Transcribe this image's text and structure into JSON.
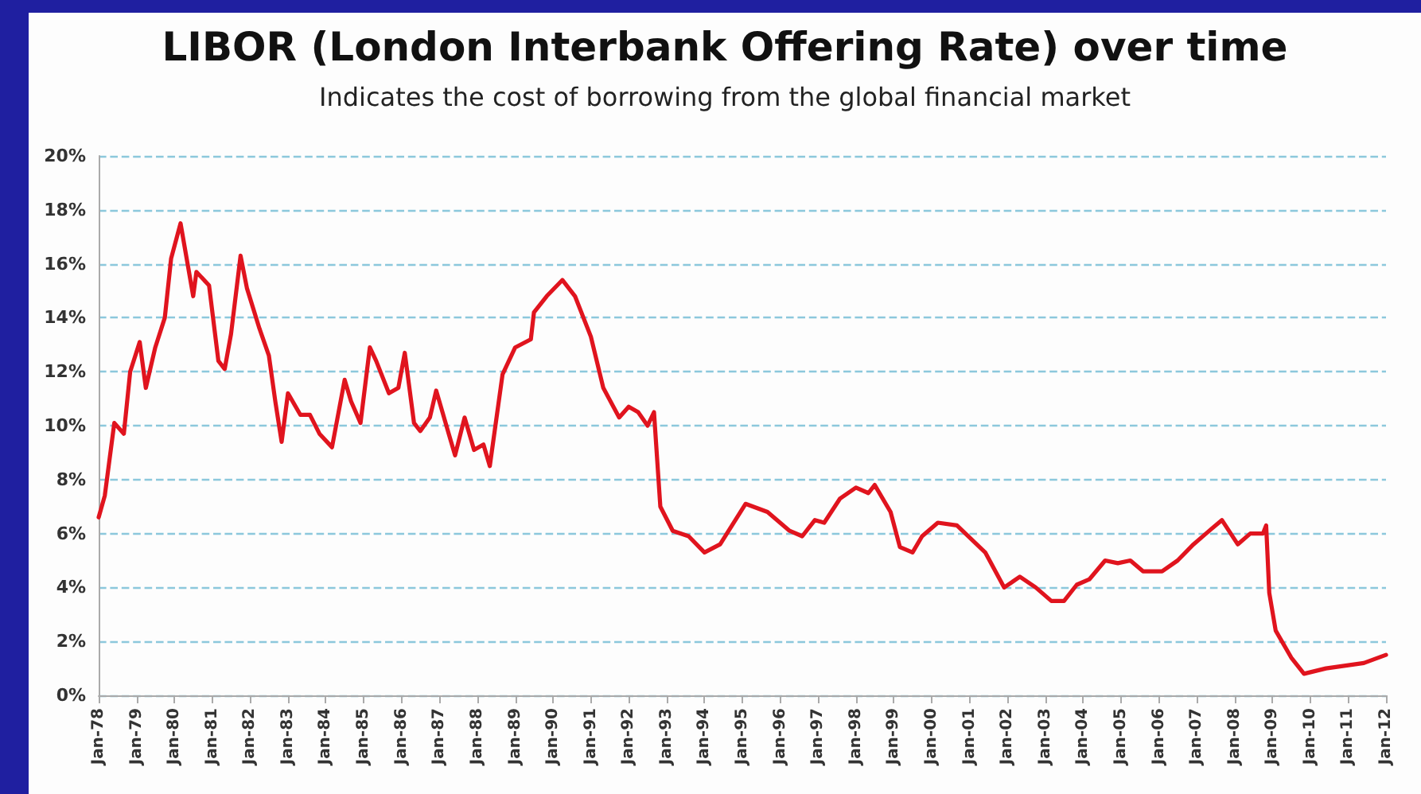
{
  "chart_data": {
    "type": "line",
    "title": "LIBOR (London Interbank Offering Rate) over time",
    "subtitle": "Indicates the cost of borrowing from the global financial market",
    "x": [
      "1978-01",
      "1978-03",
      "1978-06",
      "1978-09",
      "1978-11",
      "1979-02",
      "1979-04",
      "1979-07",
      "1979-10",
      "1979-12",
      "1980-03",
      "1980-07",
      "1980-08",
      "1980-12",
      "1981-03",
      "1981-05",
      "1981-07",
      "1981-10",
      "1981-12",
      "1982-04",
      "1982-07",
      "1982-09",
      "1982-11",
      "1983-01",
      "1983-05",
      "1983-08",
      "1983-11",
      "1984-03",
      "1984-07",
      "1984-09",
      "1984-12",
      "1985-03",
      "1985-05",
      "1985-09",
      "1985-12",
      "1986-02",
      "1986-05",
      "1986-07",
      "1986-10",
      "1986-12",
      "1987-04",
      "1987-06",
      "1987-09",
      "1987-12",
      "1988-03",
      "1988-05",
      "1988-09",
      "1989-01",
      "1989-06",
      "1989-07",
      "1989-11",
      "1990-04",
      "1990-08",
      "1991-01",
      "1991-05",
      "1991-10",
      "1992-01",
      "1992-04",
      "1992-07",
      "1992-09",
      "1992-11",
      "1993-03",
      "1993-08",
      "1994-01",
      "1994-06",
      "1995-02",
      "1995-09",
      "1996-04",
      "1996-08",
      "1996-12",
      "1997-03",
      "1997-08",
      "1998-01",
      "1998-05",
      "1998-07",
      "1998-12",
      "1999-03",
      "1999-07",
      "1999-10",
      "2000-03",
      "2000-09",
      "2001-06",
      "2001-12",
      "2002-05",
      "2002-10",
      "2003-03",
      "2003-07",
      "2003-11",
      "2004-03",
      "2004-08",
      "2004-12",
      "2005-04",
      "2005-08",
      "2006-02",
      "2006-07",
      "2006-12",
      "2007-04",
      "2007-09",
      "2008-02",
      "2008-06",
      "2008-10",
      "2008-11",
      "2008-12",
      "2009-02",
      "2009-07",
      "2009-11",
      "2010-06",
      "2011-06",
      "2012-01"
    ],
    "series": [
      {
        "color": "#e0141e",
        "values": [
          6.6,
          7.4,
          10.1,
          9.7,
          12.0,
          13.1,
          11.4,
          12.9,
          14.0,
          16.2,
          17.5,
          14.8,
          15.7,
          15.2,
          12.4,
          12.1,
          13.4,
          16.3,
          15.1,
          13.6,
          12.6,
          10.9,
          9.4,
          11.2,
          10.4,
          10.4,
          9.7,
          9.2,
          11.7,
          10.9,
          10.1,
          12.9,
          12.4,
          11.2,
          11.4,
          12.7,
          10.1,
          9.8,
          10.3,
          11.3,
          9.7,
          8.9,
          10.3,
          9.1,
          9.3,
          8.5,
          11.9,
          12.9,
          13.2,
          14.2,
          14.8,
          15.4,
          14.8,
          13.3,
          11.4,
          10.3,
          10.7,
          10.5,
          10.0,
          10.5,
          7.0,
          6.1,
          5.9,
          5.3,
          5.6,
          7.1,
          6.8,
          6.1,
          5.9,
          6.5,
          6.4,
          7.3,
          7.7,
          7.5,
          7.8,
          6.8,
          5.5,
          5.3,
          5.9,
          6.4,
          6.3,
          5.3,
          4.0,
          4.4,
          4.0,
          3.5,
          3.5,
          4.1,
          4.3,
          5.0,
          4.9,
          5.0,
          4.6,
          4.6,
          5.0,
          5.6,
          6.0,
          6.5,
          5.6,
          6.0,
          6.0,
          6.3,
          3.8,
          2.4,
          1.4,
          0.8,
          1.0,
          1.2,
          1.5
        ]
      }
    ],
    "xlim": [
      "1978-01",
      "2012-01"
    ],
    "xticks": [
      {
        "value": "1978-01",
        "label": "Jan-78"
      },
      {
        "value": "1979-01",
        "label": "Jan-79"
      },
      {
        "value": "1980-01",
        "label": "Jan-80"
      },
      {
        "value": "1981-01",
        "label": "Jan-81"
      },
      {
        "value": "1982-01",
        "label": "Jan-82"
      },
      {
        "value": "1983-01",
        "label": "Jan-83"
      },
      {
        "value": "1984-01",
        "label": "Jan-84"
      },
      {
        "value": "1985-01",
        "label": "Jan-85"
      },
      {
        "value": "1986-01",
        "label": "Jan-86"
      },
      {
        "value": "1987-01",
        "label": "Jan-87"
      },
      {
        "value": "1988-01",
        "label": "Jan-88"
      },
      {
        "value": "1989-01",
        "label": "Jan-89"
      },
      {
        "value": "1990-01",
        "label": "Jan-90"
      },
      {
        "value": "1991-01",
        "label": "Jan-91"
      },
      {
        "value": "1992-01",
        "label": "Jan-92"
      },
      {
        "value": "1993-01",
        "label": "Jan-93"
      },
      {
        "value": "1994-01",
        "label": "Jan-94"
      },
      {
        "value": "1995-01",
        "label": "Jan-95"
      },
      {
        "value": "1996-01",
        "label": "Jan-96"
      },
      {
        "value": "1997-01",
        "label": "Jan-97"
      },
      {
        "value": "1998-01",
        "label": "Jan-98"
      },
      {
        "value": "1999-01",
        "label": "Jan-99"
      },
      {
        "value": "2000-01",
        "label": "Jan-00"
      },
      {
        "value": "2001-01",
        "label": "Jan-01"
      },
      {
        "value": "2002-01",
        "label": "Jan-02"
      },
      {
        "value": "2003-01",
        "label": "Jan-03"
      },
      {
        "value": "2004-01",
        "label": "Jan-04"
      },
      {
        "value": "2005-01",
        "label": "Jan-05"
      },
      {
        "value": "2006-01",
        "label": "Jan-06"
      },
      {
        "value": "2007-01",
        "label": "Jan-07"
      },
      {
        "value": "2008-01",
        "label": "Jan-08"
      },
      {
        "value": "2009-01",
        "label": "Jan-09"
      },
      {
        "value": "2010-01",
        "label": "Jan-10"
      },
      {
        "value": "2011-01",
        "label": "Jan-11"
      },
      {
        "value": "2012-01",
        "label": "Jan-12"
      }
    ],
    "ylim": [
      0,
      20
    ],
    "yticks": [
      {
        "value": 0,
        "label": "0%"
      },
      {
        "value": 2,
        "label": "2%"
      },
      {
        "value": 4,
        "label": "4%"
      },
      {
        "value": 6,
        "label": "6%"
      },
      {
        "value": 8,
        "label": "8%"
      },
      {
        "value": 10,
        "label": "10%"
      },
      {
        "value": 12,
        "label": "12%"
      },
      {
        "value": 14,
        "label": "14%"
      },
      {
        "value": 16,
        "label": "16%"
      },
      {
        "value": 18,
        "label": "18%"
      },
      {
        "value": 20,
        "label": "20%"
      }
    ],
    "grid": "y",
    "marker": "none",
    "line_style": "solid"
  }
}
